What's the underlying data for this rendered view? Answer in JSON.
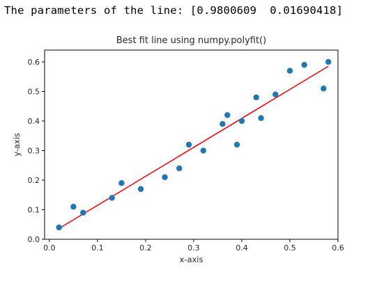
{
  "output": {
    "text": "The parameters of the line: [0.9800609  0.01690418]"
  },
  "chart_data": {
    "type": "scatter",
    "title": "Best fit line using numpy.polyfit()",
    "xlabel": "x-axis",
    "ylabel": "y-axis",
    "xlim": [
      -0.01,
      0.6
    ],
    "ylim": [
      0.0,
      0.64
    ],
    "xticks": [
      "0.0",
      "0.1",
      "0.2",
      "0.3",
      "0.4",
      "0.5",
      "0.6"
    ],
    "yticks": [
      "0.0",
      "0.1",
      "0.2",
      "0.3",
      "0.4",
      "0.5",
      "0.6"
    ],
    "grid": false,
    "series": [
      {
        "kind": "scatter",
        "color": "#1f77b4",
        "points": [
          [
            0.02,
            0.04
          ],
          [
            0.05,
            0.11
          ],
          [
            0.07,
            0.09
          ],
          [
            0.13,
            0.14
          ],
          [
            0.15,
            0.19
          ],
          [
            0.19,
            0.17
          ],
          [
            0.24,
            0.21
          ],
          [
            0.27,
            0.24
          ],
          [
            0.29,
            0.32
          ],
          [
            0.32,
            0.3
          ],
          [
            0.36,
            0.39
          ],
          [
            0.37,
            0.42
          ],
          [
            0.39,
            0.32
          ],
          [
            0.4,
            0.4
          ],
          [
            0.43,
            0.48
          ],
          [
            0.44,
            0.41
          ],
          [
            0.47,
            0.49
          ],
          [
            0.5,
            0.57
          ],
          [
            0.53,
            0.59
          ],
          [
            0.57,
            0.51
          ],
          [
            0.58,
            0.6
          ]
        ]
      },
      {
        "kind": "line",
        "color": "#ff0000",
        "slope": 0.9800609,
        "intercept": 0.01690418,
        "x_range": [
          0.02,
          0.58
        ]
      }
    ]
  }
}
